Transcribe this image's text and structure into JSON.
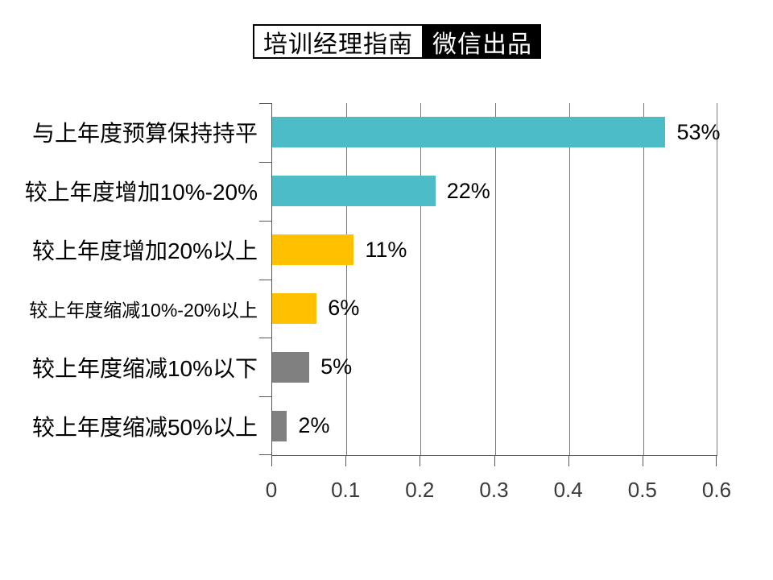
{
  "header": {
    "badge_left": "培训经理指南",
    "badge_right": "微信出品"
  },
  "chart_data": {
    "type": "bar",
    "orientation": "horizontal",
    "title": "",
    "xlabel": "",
    "ylabel": "",
    "categories": [
      "与上年度预算保持持平",
      "较上年度增加10%-20%",
      "较上年度增加20%以上",
      "较上年度缩减10%-20%以上",
      "较上年度缩减10%以下",
      "较上年度缩减50%以上"
    ],
    "values": [
      0.53,
      0.22,
      0.11,
      0.06,
      0.05,
      0.02
    ],
    "value_labels": [
      "53%",
      "22%",
      "11%",
      "6%",
      "5%",
      "2%"
    ],
    "colors": [
      "#4DBCC9",
      "#4DBCC9",
      "#FFC000",
      "#FFC000",
      "#808080",
      "#808080"
    ],
    "xlim": [
      0,
      0.6
    ],
    "x_ticks": [
      "0",
      "0.1",
      "0.2",
      "0.3",
      "0.4",
      "0.5",
      "0.6"
    ],
    "grid": "vertical-gridlines-on",
    "legend": "none"
  }
}
